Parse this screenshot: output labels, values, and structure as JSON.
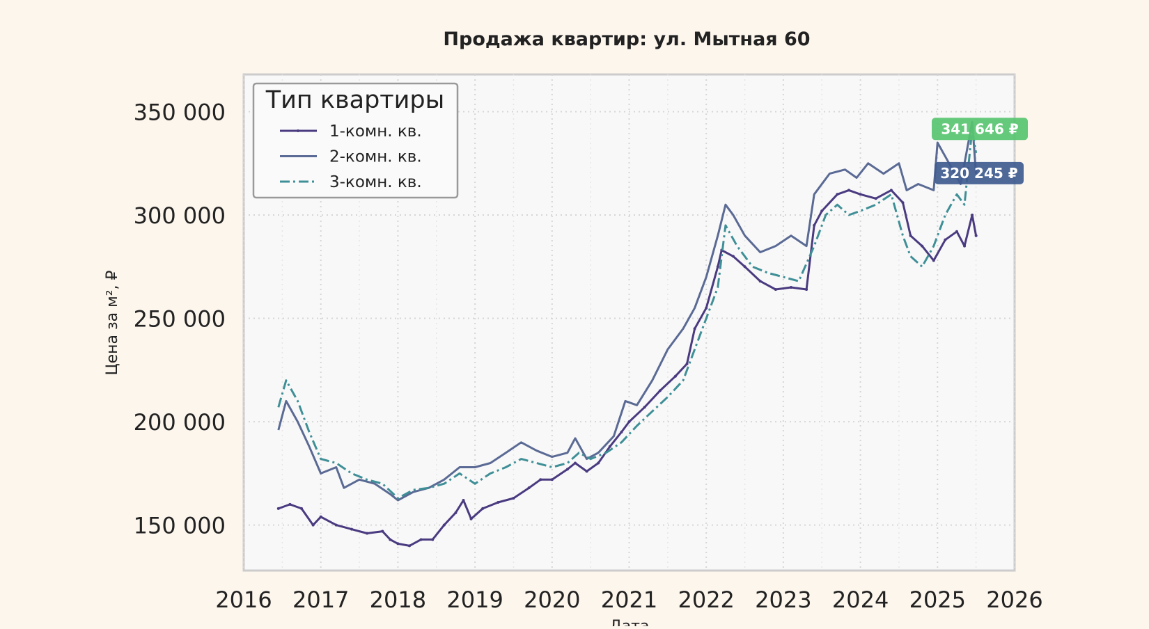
{
  "chart_data": {
    "type": "line",
    "title": "Продажа квартир: ул. Мытная 60",
    "xlabel": "Дата",
    "ylabel": "Цена за м², ₽",
    "xlim": [
      2016.0,
      2026.0
    ],
    "ylim": [
      128000,
      368000
    ],
    "x_ticks": [
      2016,
      2017,
      2018,
      2019,
      2020,
      2021,
      2022,
      2023,
      2024,
      2025,
      2026
    ],
    "x_tick_labels": [
      "2016",
      "2017",
      "2018",
      "2019",
      "2020",
      "2021",
      "2022",
      "2023",
      "2024",
      "2025",
      "2026"
    ],
    "y_ticks": [
      150000,
      200000,
      250000,
      300000,
      350000
    ],
    "y_tick_labels": [
      "150 000",
      "200 000",
      "250 000",
      "300 000",
      "350 000"
    ],
    "grid": true,
    "legend": {
      "title": "Тип квартиры",
      "placement": "top-left"
    },
    "series": [
      {
        "name": "1-комн. кв.",
        "color": "#4a3a80",
        "style": "solid-marker",
        "x": [
          2016.45,
          2016.6,
          2016.75,
          2016.9,
          2017.0,
          2017.2,
          2017.4,
          2017.6,
          2017.8,
          2017.9,
          2018.0,
          2018.15,
          2018.3,
          2018.45,
          2018.6,
          2018.75,
          2018.85,
          2018.95,
          2019.1,
          2019.3,
          2019.5,
          2019.7,
          2019.85,
          2020.0,
          2020.2,
          2020.3,
          2020.45,
          2020.6,
          2020.75,
          2020.9,
          2021.0,
          2021.2,
          2021.4,
          2021.6,
          2021.75,
          2021.85,
          2022.0,
          2022.15,
          2022.2,
          2022.35,
          2022.5,
          2022.7,
          2022.9,
          2023.1,
          2023.3,
          2023.4,
          2023.5,
          2023.7,
          2023.85,
          2024.0,
          2024.2,
          2024.4,
          2024.55,
          2024.65,
          2024.8,
          2024.95,
          2025.1,
          2025.25,
          2025.35,
          2025.45,
          2025.5
        ],
        "values": [
          158000,
          160000,
          158000,
          150000,
          154000,
          150000,
          148000,
          146000,
          147000,
          143000,
          141000,
          140000,
          143000,
          143000,
          150000,
          156000,
          162000,
          153000,
          158000,
          161000,
          163000,
          168000,
          172000,
          172000,
          177000,
          180000,
          176000,
          180000,
          188000,
          195000,
          200000,
          207000,
          215000,
          222000,
          228000,
          245000,
          255000,
          275000,
          283000,
          280000,
          275000,
          268000,
          264000,
          265000,
          264000,
          295000,
          302000,
          310000,
          312000,
          310000,
          308000,
          312000,
          306000,
          290000,
          285000,
          278000,
          288000,
          292000,
          285000,
          300000,
          290000
        ]
      },
      {
        "name": "2-комн. кв.",
        "color": "#5a6a94",
        "style": "solid",
        "x": [
          2016.45,
          2016.55,
          2016.7,
          2016.85,
          2017.0,
          2017.2,
          2017.3,
          2017.5,
          2017.7,
          2017.9,
          2018.0,
          2018.2,
          2018.4,
          2018.6,
          2018.8,
          2019.0,
          2019.2,
          2019.4,
          2019.6,
          2019.8,
          2020.0,
          2020.2,
          2020.3,
          2020.45,
          2020.6,
          2020.8,
          2020.95,
          2021.1,
          2021.3,
          2021.5,
          2021.7,
          2021.85,
          2022.0,
          2022.15,
          2022.25,
          2022.35,
          2022.5,
          2022.7,
          2022.9,
          2023.1,
          2023.3,
          2023.4,
          2023.6,
          2023.8,
          2023.95,
          2024.1,
          2024.3,
          2024.5,
          2024.6,
          2024.75,
          2024.95,
          2025.0,
          2025.15,
          2025.3,
          2025.45,
          2025.5
        ],
        "values": [
          196000,
          210000,
          200000,
          188000,
          175000,
          178000,
          168000,
          172000,
          170000,
          165000,
          162000,
          166000,
          168000,
          172000,
          178000,
          178000,
          180000,
          185000,
          190000,
          186000,
          183000,
          185000,
          192000,
          182000,
          185000,
          193000,
          210000,
          208000,
          220000,
          235000,
          245000,
          255000,
          270000,
          290000,
          305000,
          300000,
          290000,
          282000,
          285000,
          290000,
          285000,
          310000,
          320000,
          322000,
          318000,
          325000,
          320000,
          325000,
          312000,
          315000,
          312000,
          335000,
          325000,
          315000,
          345000,
          320000
        ]
      },
      {
        "name": "3-комн. кв.",
        "color": "#3f8f97",
        "style": "dashdot",
        "x": [
          2016.45,
          2016.55,
          2016.7,
          2016.85,
          2017.0,
          2017.2,
          2017.4,
          2017.6,
          2017.8,
          2018.0,
          2018.2,
          2018.4,
          2018.6,
          2018.8,
          2019.0,
          2019.2,
          2019.4,
          2019.6,
          2019.8,
          2020.0,
          2020.2,
          2020.35,
          2020.5,
          2020.7,
          2020.9,
          2021.1,
          2021.3,
          2021.5,
          2021.7,
          2021.85,
          2022.0,
          2022.15,
          2022.25,
          2022.4,
          2022.6,
          2022.8,
          2023.0,
          2023.2,
          2023.4,
          2023.55,
          2023.7,
          2023.85,
          2024.0,
          2024.2,
          2024.4,
          2024.55,
          2024.65,
          2024.8,
          2024.95,
          2025.1,
          2025.25,
          2025.35,
          2025.45,
          2025.5
        ],
        "values": [
          207000,
          220000,
          210000,
          195000,
          182000,
          180000,
          175000,
          172000,
          170000,
          163000,
          167000,
          168000,
          170000,
          175000,
          170000,
          175000,
          178000,
          182000,
          180000,
          178000,
          180000,
          185000,
          182000,
          185000,
          190000,
          198000,
          205000,
          212000,
          220000,
          235000,
          250000,
          265000,
          295000,
          285000,
          275000,
          272000,
          270000,
          268000,
          285000,
          300000,
          305000,
          300000,
          302000,
          305000,
          310000,
          290000,
          280000,
          275000,
          285000,
          300000,
          310000,
          305000,
          341646,
          330000
        ]
      }
    ],
    "annotations": [
      {
        "text": "341 646 ₽",
        "value": 341646,
        "color": "#58c470"
      },
      {
        "text": "320 245 ₽",
        "value": 320245,
        "color": "#3f5b8f"
      }
    ]
  }
}
